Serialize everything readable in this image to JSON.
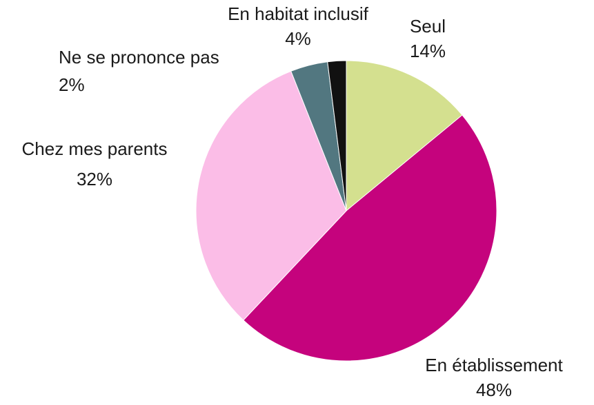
{
  "chart_data": {
    "type": "pie",
    "categories": [
      "Seul",
      "En établissement",
      "Chez mes parents",
      "En habitat inclusif",
      "Ne se prononce pas"
    ],
    "values": [
      14,
      48,
      32,
      4,
      2
    ],
    "value_labels": [
      "14%",
      "48%",
      "32%",
      "4%",
      "2%"
    ],
    "colors": [
      "#d4e08f",
      "#c5037d",
      "#fbbde7",
      "#527780",
      "#111111"
    ]
  }
}
